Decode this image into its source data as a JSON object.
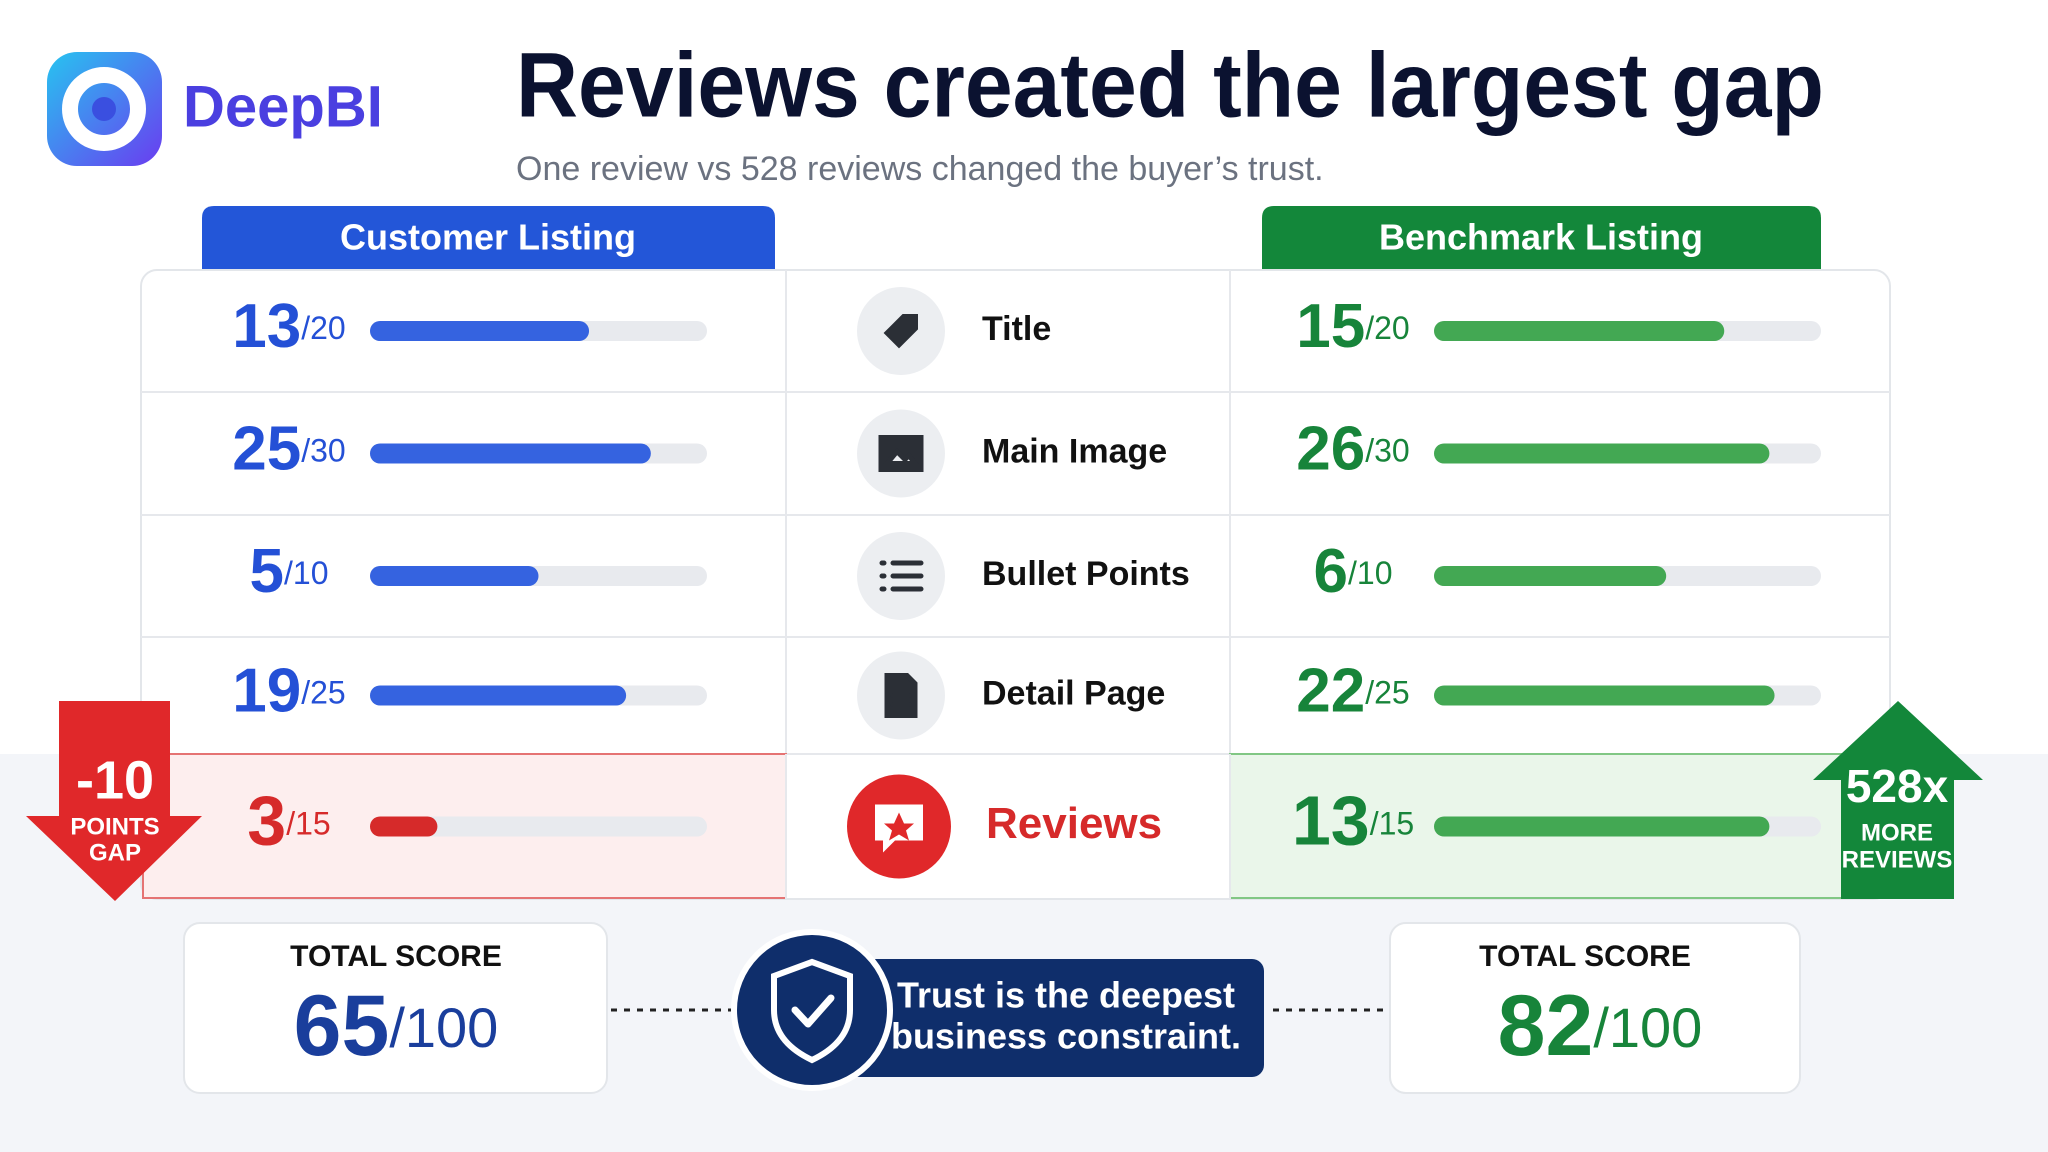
{
  "logo": {
    "name": "DeepBI"
  },
  "header": {
    "title": "Reviews created the largest gap",
    "subtitle": "One review vs 528 reviews changed the buyer’s trust."
  },
  "columns": {
    "customer": "Customer Listing",
    "benchmark": "Benchmark Listing"
  },
  "rows": [
    {
      "label": "Title",
      "customer": 13,
      "benchmark": 15,
      "max": {
        "value": 20,
        "label": "/20"
      }
    },
    {
      "label": "Main Image",
      "customer": 25,
      "benchmark": 26,
      "max": {
        "value": 30,
        "label": "/30"
      }
    },
    {
      "label": "Bullet Points",
      "customer": 5,
      "benchmark": 6,
      "max": {
        "value": 10,
        "label": "/10"
      }
    },
    {
      "label": "Detail Page",
      "customer": 19,
      "benchmark": 22,
      "max": {
        "value": 25,
        "label": "/25"
      }
    },
    {
      "label": "Reviews",
      "customer": 3,
      "benchmark": 13,
      "max": {
        "value": 15,
        "label": "/15"
      },
      "highlight": true
    }
  ],
  "gap_badge": {
    "value": -10,
    "lines": [
      "POINTS",
      "GAP"
    ]
  },
  "reviews_badge": {
    "value": {
      "value": 528,
      "label": "528x"
    },
    "lines": [
      "MORE",
      "REVIEWS"
    ]
  },
  "totals": {
    "customer": {
      "label": "TOTAL SCORE",
      "score": 65,
      "max": {
        "value": 100,
        "label": "/100"
      }
    },
    "benchmark": {
      "label": "TOTAL SCORE",
      "score": 82,
      "max": {
        "value": 100,
        "label": "/100"
      }
    }
  },
  "message": {
    "lines": [
      "Trust is the deepest",
      "business constraint."
    ]
  }
}
